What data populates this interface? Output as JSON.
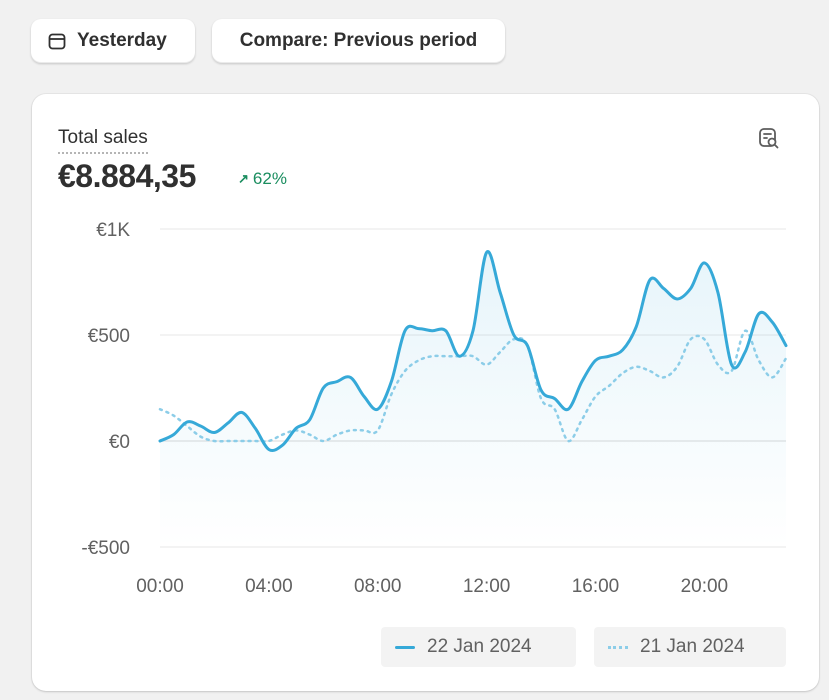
{
  "toolbar": {
    "date_label": "Yesterday",
    "compare_label": "Compare: Previous period"
  },
  "card": {
    "title": "Total sales",
    "value": "€8.884,35",
    "change": "62%",
    "change_direction": "up"
  },
  "colors": {
    "primary_series": "#36a9d8",
    "comparison_series": "#8ccde8",
    "positive_change": "#1a8d5f"
  },
  "icons": {
    "date": "calendar-icon",
    "explore": "explore-report-icon",
    "change": "arrow-up-right-icon"
  },
  "chart_data": {
    "type": "line",
    "ylim": [
      -500,
      1000
    ],
    "y_ticks": [
      {
        "value": 1000,
        "label": "€1K"
      },
      {
        "value": 500,
        "label": "€500"
      },
      {
        "value": 0,
        "label": "€0"
      },
      {
        "value": -500,
        "label": "-€500"
      }
    ],
    "x_range": [
      0,
      23
    ],
    "x_ticks": [
      {
        "value": 0,
        "label": "00:00"
      },
      {
        "value": 4,
        "label": "04:00"
      },
      {
        "value": 8,
        "label": "08:00"
      },
      {
        "value": 12,
        "label": "12:00"
      },
      {
        "value": 16,
        "label": "16:00"
      },
      {
        "value": 20,
        "label": "20:00"
      }
    ],
    "grid": true,
    "legend_position": "bottom-right",
    "series": [
      {
        "name": "22 Jan 2024",
        "style": "solid",
        "x": [
          0,
          0.5,
          1,
          1.5,
          2,
          2.5,
          3,
          3.5,
          4,
          4.5,
          5,
          5.5,
          6,
          6.5,
          7,
          7.5,
          8,
          8.5,
          9,
          9.5,
          10,
          10.5,
          11,
          11.5,
          12,
          12.5,
          13,
          13.5,
          14,
          14.5,
          15,
          15.5,
          16,
          16.5,
          17,
          17.5,
          18,
          18.5,
          19,
          19.5,
          20,
          20.5,
          21,
          21.5,
          22,
          22.5,
          23
        ],
        "values": [
          0,
          30,
          90,
          70,
          40,
          85,
          135,
          60,
          -40,
          -20,
          60,
          100,
          250,
          280,
          300,
          210,
          150,
          280,
          520,
          530,
          520,
          520,
          400,
          520,
          890,
          700,
          500,
          450,
          240,
          200,
          150,
          280,
          380,
          400,
          430,
          540,
          760,
          720,
          670,
          720,
          840,
          700,
          360,
          420,
          600,
          560,
          450
        ]
      },
      {
        "name": "21 Jan 2024",
        "style": "dotted",
        "x": [
          0,
          0.5,
          1,
          1.5,
          2,
          2.5,
          3,
          3.5,
          4,
          4.5,
          5,
          5.5,
          6,
          6.5,
          7,
          7.5,
          8,
          8.5,
          9,
          9.5,
          10,
          10.5,
          11,
          11.5,
          12,
          12.5,
          13,
          13.5,
          14,
          14.5,
          15,
          15.5,
          16,
          16.5,
          17,
          17.5,
          18,
          18.5,
          19,
          19.5,
          20,
          20.5,
          21,
          21.5,
          22,
          22.5,
          23
        ],
        "values": [
          150,
          120,
          70,
          20,
          0,
          0,
          0,
          0,
          0,
          30,
          50,
          30,
          0,
          30,
          50,
          50,
          50,
          220,
          330,
          380,
          400,
          400,
          400,
          400,
          360,
          420,
          480,
          450,
          200,
          150,
          0,
          100,
          210,
          260,
          320,
          350,
          330,
          300,
          350,
          480,
          480,
          360,
          330,
          520,
          380,
          300,
          390
        ]
      }
    ]
  }
}
